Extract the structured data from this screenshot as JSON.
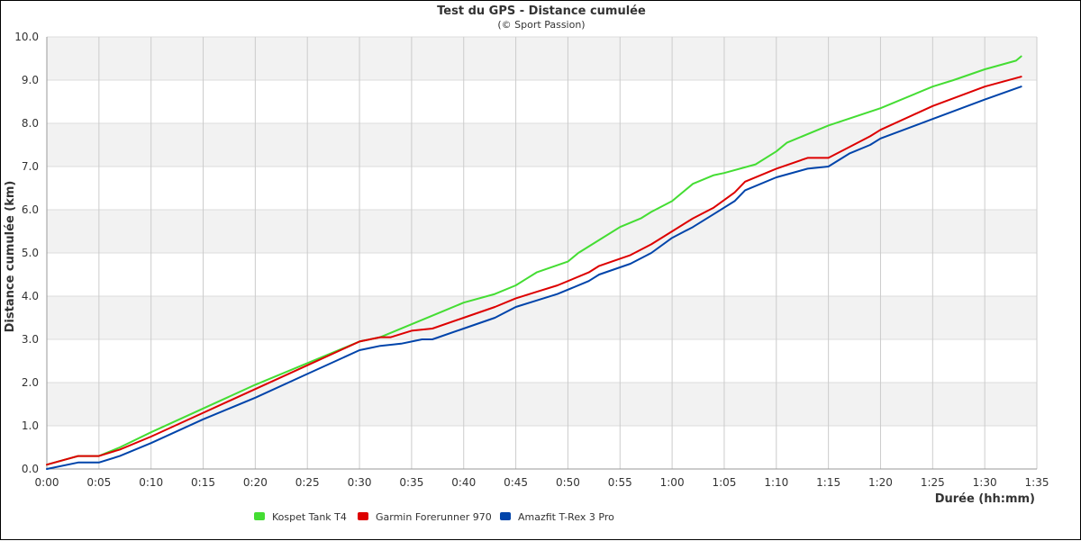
{
  "chart_data": {
    "type": "line",
    "title": "Test du GPS - Distance cumulée",
    "subtitle": "(© Sport Passion)",
    "xlabel": "Durée (hh:mm)",
    "ylabel": "Distance cumulée (km)",
    "x_unit": "minutes",
    "xlim": [
      0,
      95
    ],
    "ylim": [
      0,
      10
    ],
    "grid": true,
    "legend_position": "bottom-left",
    "x_ticks": [
      {
        "value": 0,
        "label": "0:00"
      },
      {
        "value": 5,
        "label": "0:05"
      },
      {
        "value": 10,
        "label": "0:10"
      },
      {
        "value": 15,
        "label": "0:15"
      },
      {
        "value": 20,
        "label": "0:20"
      },
      {
        "value": 25,
        "label": "0:25"
      },
      {
        "value": 30,
        "label": "0:30"
      },
      {
        "value": 35,
        "label": "0:35"
      },
      {
        "value": 40,
        "label": "0:40"
      },
      {
        "value": 45,
        "label": "0:45"
      },
      {
        "value": 50,
        "label": "0:50"
      },
      {
        "value": 55,
        "label": "0:55"
      },
      {
        "value": 60,
        "label": "1:00"
      },
      {
        "value": 65,
        "label": "1:05"
      },
      {
        "value": 70,
        "label": "1:10"
      },
      {
        "value": 75,
        "label": "1:15"
      },
      {
        "value": 80,
        "label": "1:20"
      },
      {
        "value": 85,
        "label": "1:25"
      },
      {
        "value": 90,
        "label": "1:30"
      },
      {
        "value": 95,
        "label": "1:35"
      }
    ],
    "y_ticks": [
      {
        "value": 0,
        "label": "0.0"
      },
      {
        "value": 1,
        "label": "1.0"
      },
      {
        "value": 2,
        "label": "2.0"
      },
      {
        "value": 3,
        "label": "3.0"
      },
      {
        "value": 4,
        "label": "4.0"
      },
      {
        "value": 5,
        "label": "5.0"
      },
      {
        "value": 6,
        "label": "6.0"
      },
      {
        "value": 7,
        "label": "7.0"
      },
      {
        "value": 8,
        "label": "8.0"
      },
      {
        "value": 9,
        "label": "9.0"
      },
      {
        "value": 10,
        "label": "10.0"
      }
    ],
    "series": [
      {
        "name": "Kospet Tank T4",
        "color": "#44dd33",
        "x": [
          0,
          3,
          5,
          7,
          10,
          15,
          20,
          25,
          30,
          32,
          35,
          38,
          40,
          43,
          45,
          46,
          47,
          50,
          51,
          53,
          55,
          57,
          58,
          60,
          62,
          64,
          65,
          68,
          70,
          71,
          75,
          80,
          85,
          87,
          90,
          93,
          93.5
        ],
        "y": [
          0.1,
          0.3,
          0.3,
          0.5,
          0.85,
          1.4,
          1.95,
          2.45,
          2.95,
          3.05,
          3.35,
          3.65,
          3.85,
          4.05,
          4.25,
          4.4,
          4.55,
          4.8,
          5.0,
          5.3,
          5.6,
          5.8,
          5.95,
          6.2,
          6.6,
          6.8,
          6.85,
          7.05,
          7.35,
          7.55,
          7.95,
          8.35,
          8.85,
          9.0,
          9.25,
          9.45,
          9.55
        ]
      },
      {
        "name": "Garmin Forerunner 970",
        "color": "#dd0000",
        "x": [
          0,
          3,
          5,
          7,
          10,
          15,
          20,
          25,
          30,
          32,
          33,
          35,
          37,
          40,
          43,
          45,
          47,
          49,
          52,
          53,
          56,
          58,
          60,
          62,
          64,
          66,
          67,
          70,
          73,
          75,
          77,
          79,
          80,
          85,
          90,
          93.5
        ],
        "y": [
          0.1,
          0.3,
          0.3,
          0.45,
          0.75,
          1.3,
          1.85,
          2.4,
          2.95,
          3.05,
          3.05,
          3.2,
          3.25,
          3.5,
          3.75,
          3.95,
          4.1,
          4.25,
          4.55,
          4.7,
          4.95,
          5.2,
          5.5,
          5.8,
          6.05,
          6.4,
          6.65,
          6.95,
          7.2,
          7.2,
          7.45,
          7.7,
          7.85,
          8.4,
          8.85,
          9.08
        ]
      },
      {
        "name": "Amazfit T-Rex 3 Pro",
        "color": "#0044aa",
        "x": [
          0,
          3,
          5,
          7,
          10,
          15,
          20,
          25,
          30,
          31,
          32,
          34,
          36,
          37,
          40,
          43,
          45,
          47,
          49,
          52,
          53,
          56,
          58,
          60,
          62,
          64,
          66,
          67,
          70,
          73,
          75,
          77,
          79,
          80,
          85,
          90,
          93.5
        ],
        "y": [
          0.0,
          0.15,
          0.15,
          0.3,
          0.6,
          1.15,
          1.65,
          2.2,
          2.75,
          2.8,
          2.85,
          2.9,
          3.0,
          3.0,
          3.25,
          3.5,
          3.75,
          3.9,
          4.05,
          4.35,
          4.5,
          4.75,
          5.0,
          5.35,
          5.6,
          5.9,
          6.2,
          6.45,
          6.75,
          6.95,
          7.0,
          7.3,
          7.5,
          7.65,
          8.1,
          8.55,
          8.85
        ]
      }
    ]
  }
}
